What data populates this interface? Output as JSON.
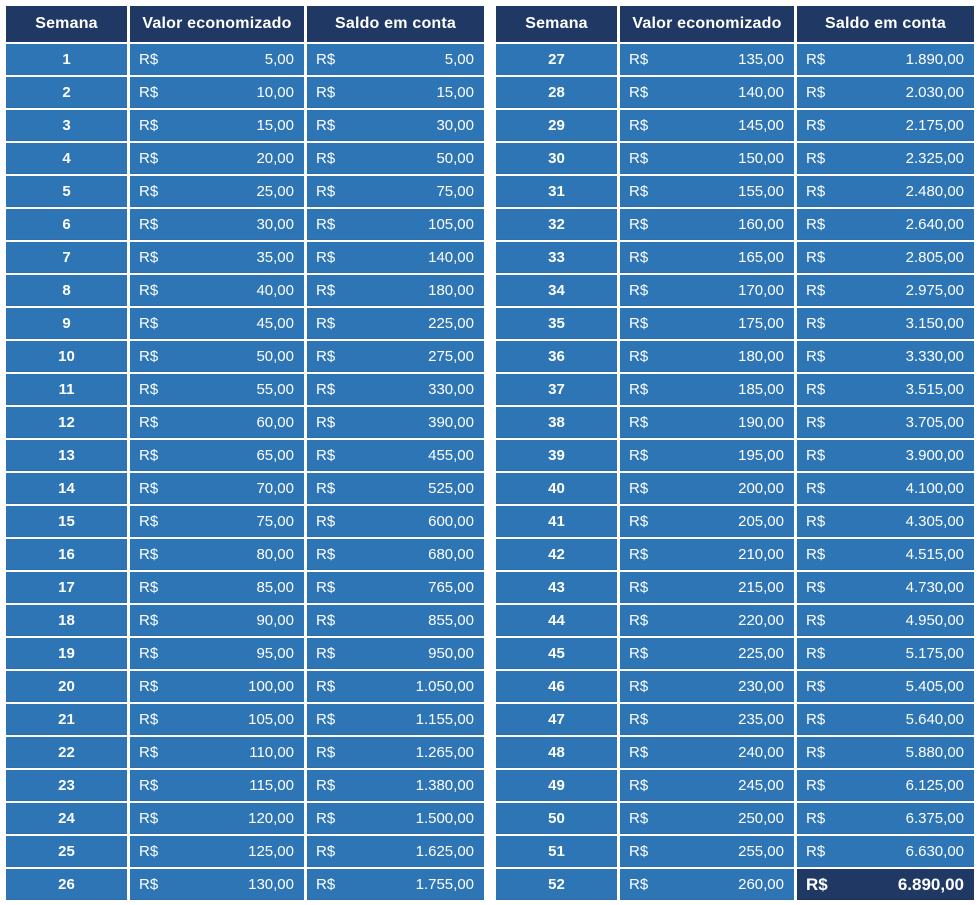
{
  "ui": {
    "colors": {
      "header_bg": "#1F3864",
      "row_bg": "#2E75B6",
      "total_cell_bg": "#1F3864",
      "text": "#FFFFFF",
      "grid_gap": "#FFFFFF"
    }
  },
  "chart_data": {
    "type": "table",
    "title": "",
    "columns": [
      "Semana",
      "Valor economizado",
      "Saldo em conta"
    ],
    "currency_symbol": "R$",
    "rows_per_table": 26,
    "tables_split": [
      [
        1,
        26
      ],
      [
        27,
        52
      ]
    ],
    "highlight_last_balance": true,
    "rows": [
      [
        "1",
        "5,00",
        "5,00"
      ],
      [
        "2",
        "10,00",
        "15,00"
      ],
      [
        "3",
        "15,00",
        "30,00"
      ],
      [
        "4",
        "20,00",
        "50,00"
      ],
      [
        "5",
        "25,00",
        "75,00"
      ],
      [
        "6",
        "30,00",
        "105,00"
      ],
      [
        "7",
        "35,00",
        "140,00"
      ],
      [
        "8",
        "40,00",
        "180,00"
      ],
      [
        "9",
        "45,00",
        "225,00"
      ],
      [
        "10",
        "50,00",
        "275,00"
      ],
      [
        "11",
        "55,00",
        "330,00"
      ],
      [
        "12",
        "60,00",
        "390,00"
      ],
      [
        "13",
        "65,00",
        "455,00"
      ],
      [
        "14",
        "70,00",
        "525,00"
      ],
      [
        "15",
        "75,00",
        "600,00"
      ],
      [
        "16",
        "80,00",
        "680,00"
      ],
      [
        "17",
        "85,00",
        "765,00"
      ],
      [
        "18",
        "90,00",
        "855,00"
      ],
      [
        "19",
        "95,00",
        "950,00"
      ],
      [
        "20",
        "100,00",
        "1.050,00"
      ],
      [
        "21",
        "105,00",
        "1.155,00"
      ],
      [
        "22",
        "110,00",
        "1.265,00"
      ],
      [
        "23",
        "115,00",
        "1.380,00"
      ],
      [
        "24",
        "120,00",
        "1.500,00"
      ],
      [
        "25",
        "125,00",
        "1.625,00"
      ],
      [
        "26",
        "130,00",
        "1.755,00"
      ],
      [
        "27",
        "135,00",
        "1.890,00"
      ],
      [
        "28",
        "140,00",
        "2.030,00"
      ],
      [
        "29",
        "145,00",
        "2.175,00"
      ],
      [
        "30",
        "150,00",
        "2.325,00"
      ],
      [
        "31",
        "155,00",
        "2.480,00"
      ],
      [
        "32",
        "160,00",
        "2.640,00"
      ],
      [
        "33",
        "165,00",
        "2.805,00"
      ],
      [
        "34",
        "170,00",
        "2.975,00"
      ],
      [
        "35",
        "175,00",
        "3.150,00"
      ],
      [
        "36",
        "180,00",
        "3.330,00"
      ],
      [
        "37",
        "185,00",
        "3.515,00"
      ],
      [
        "38",
        "190,00",
        "3.705,00"
      ],
      [
        "39",
        "195,00",
        "3.900,00"
      ],
      [
        "40",
        "200,00",
        "4.100,00"
      ],
      [
        "41",
        "205,00",
        "4.305,00"
      ],
      [
        "42",
        "210,00",
        "4.515,00"
      ],
      [
        "43",
        "215,00",
        "4.730,00"
      ],
      [
        "44",
        "220,00",
        "4.950,00"
      ],
      [
        "45",
        "225,00",
        "5.175,00"
      ],
      [
        "46",
        "230,00",
        "5.405,00"
      ],
      [
        "47",
        "235,00",
        "5.640,00"
      ],
      [
        "48",
        "240,00",
        "5.880,00"
      ],
      [
        "49",
        "245,00",
        "6.125,00"
      ],
      [
        "50",
        "250,00",
        "6.375,00"
      ],
      [
        "51",
        "255,00",
        "6.630,00"
      ],
      [
        "52",
        "260,00",
        "6.890,00"
      ]
    ]
  }
}
